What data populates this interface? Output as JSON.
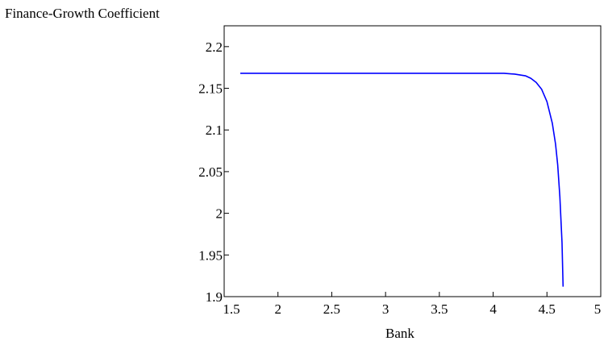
{
  "chart_data": {
    "type": "line",
    "title": "",
    "xlabel": "Bank",
    "ylabel": "Finance-Growth Coefficient",
    "xlim": [
      1.5,
      5
    ],
    "ylim": [
      1.9,
      2.225
    ],
    "xticks": [
      1.5,
      2,
      2.5,
      3,
      3.5,
      4,
      4.5,
      5
    ],
    "xtick_labels": [
      "1.5",
      "2",
      "2.5",
      "3",
      "3.5",
      "4",
      "4.5",
      "5"
    ],
    "yticks": [
      1.9,
      1.95,
      2,
      2.05,
      2.1,
      2.15,
      2.2
    ],
    "ytick_labels": [
      "1.9",
      "1.95",
      "2",
      "2.05",
      "2.1",
      "2.15",
      "2.2"
    ],
    "grid": false,
    "series": [
      {
        "color": "#0000ff",
        "x": [
          1.65,
          2.0,
          2.5,
          3.0,
          3.5,
          4.0,
          4.1,
          4.2,
          4.3,
          4.35,
          4.4,
          4.45,
          4.5,
          4.55,
          4.58,
          4.6,
          4.62,
          4.64,
          4.65
        ],
        "y": [
          2.168,
          2.168,
          2.168,
          2.168,
          2.168,
          2.168,
          2.168,
          2.167,
          2.165,
          2.162,
          2.157,
          2.149,
          2.134,
          2.108,
          2.083,
          2.058,
          2.02,
          1.965,
          1.912
        ]
      }
    ]
  }
}
